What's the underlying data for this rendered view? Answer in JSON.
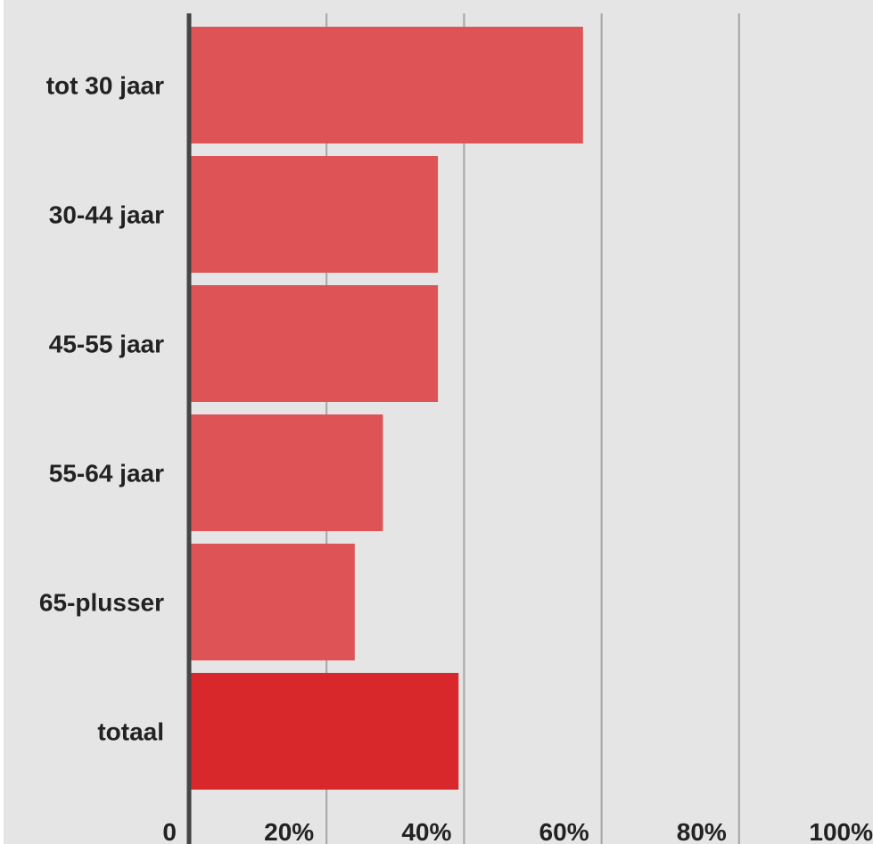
{
  "chart_data": {
    "type": "bar",
    "orientation": "horizontal",
    "categories": [
      "tot 30 jaar",
      "30-44 jaar",
      "45-55 jaar",
      "55-64 jaar",
      "65-plusser",
      "totaal"
    ],
    "values": [
      57.3,
      36.2,
      36.2,
      28.2,
      24.1,
      39.2
    ],
    "xlim": [
      0,
      100
    ],
    "xticks": [
      "0",
      "20%",
      "40%",
      "60%",
      "80%",
      "100%"
    ],
    "grid": true,
    "colors": {
      "background": "#e5e5e5",
      "bar": "#dd5356",
      "bar_highlight": "#d9282c",
      "gridline": "#a4a4a4",
      "axis": "#444444",
      "text": "#222222"
    }
  }
}
